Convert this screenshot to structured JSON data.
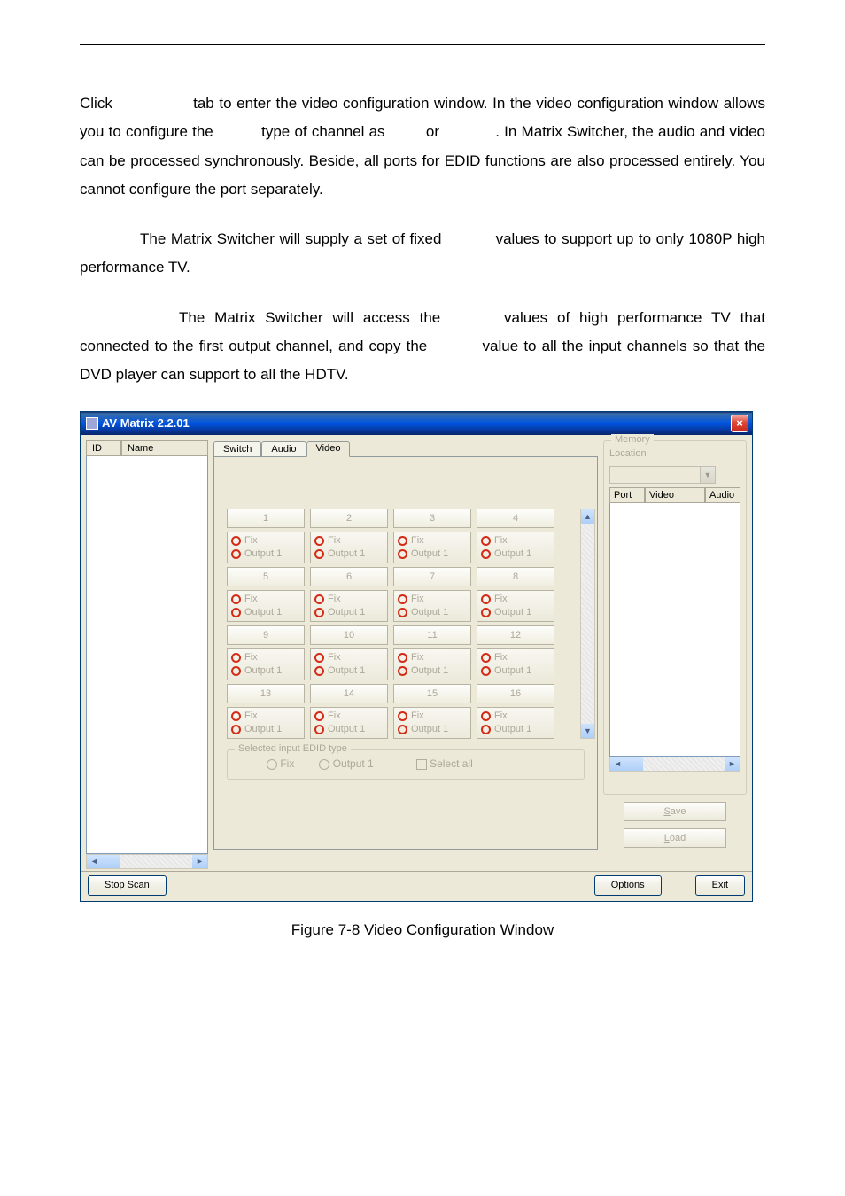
{
  "text": {
    "p1a": "Click ",
    "p1b": " tab to enter the video configuration window. In the video configuration window allows you to configure the ",
    "p1c": " type of channel as ",
    "p1d": " or ",
    "p1e": ". In Matrix Switcher, the audio and video can be processed synchronously. Beside, all ports for EDID functions are also processed entirely. You cannot configure the port separately.",
    "p2a": "The Matrix Switcher will supply a set of fixed ",
    "p2b": " values to support up to only 1080P high performance TV.",
    "p3a": "The Matrix Switcher will access the ",
    "p3b": " values of high performance TV that connected to the first output channel, and copy the ",
    "p3c": " value to all the input channels so that the DVD player can support to all the HDTV."
  },
  "caption": "Figure 7-8 Video Configuration Window",
  "win": {
    "title": "AV Matrix 2.2.01",
    "tabs": {
      "switch": "Switch",
      "audio": "Audio",
      "video": "Video"
    },
    "list_headers": {
      "id": "ID",
      "name": "Name"
    },
    "numbers": [
      "1",
      "2",
      "3",
      "4",
      "5",
      "6",
      "7",
      "8",
      "9",
      "10",
      "11",
      "12",
      "13",
      "14",
      "15",
      "16"
    ],
    "opt_fix": "Fix",
    "opt_out": "Output 1",
    "group_legend": "Selected input EDID type",
    "group_fix": "Fix",
    "group_out": "Output 1",
    "group_sel": "Select all",
    "memory_legend": "Memory",
    "memory_location": "Location",
    "mem_headers": {
      "port": "Port",
      "video": "Video",
      "audio": "Audio"
    },
    "btn_save": "Save",
    "btn_load": "Load",
    "btn_scan": "Stop Scan",
    "btn_options": "Options",
    "btn_exit": "Exit",
    "scan_accel": "c",
    "options_accel": "O",
    "exit_accel": "x",
    "save_accel": "S",
    "load_accel": "L"
  },
  "colors": {
    "page_bg": "#ffffff",
    "win_bg": "#ece9d8",
    "titlebar_grad_top": "#3a6ea5",
    "titlebar_grad_bot": "#0a246a",
    "disabled_text": "#aca899",
    "radio_border": "#d42a16",
    "button_border": "#003c74"
  }
}
